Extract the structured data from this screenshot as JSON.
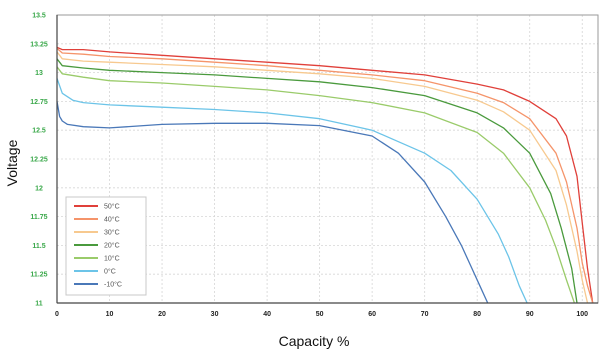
{
  "chart_data": {
    "type": "line",
    "title": "",
    "xlabel": "Capacity %",
    "ylabel": "Voltage",
    "xlim": [
      0,
      103
    ],
    "ylim": [
      11,
      13.5
    ],
    "x_ticks": [
      0,
      10,
      20,
      30,
      40,
      50,
      60,
      70,
      80,
      90,
      100
    ],
    "x_tick_labels": [
      "0",
      "10",
      "20",
      "30",
      "40",
      "50",
      "60",
      "70",
      "80",
      "90",
      "100"
    ],
    "y_ticks": [
      11,
      11.25,
      11.5,
      11.75,
      12,
      12.25,
      12.5,
      12.75,
      13,
      13.25,
      13.5
    ],
    "y_tick_labels": [
      "11",
      "11.25",
      "11.5",
      "11.75",
      "12",
      "12.25",
      "12.5",
      "12.75",
      "13",
      "13.25",
      "13.5"
    ],
    "x_tick_color": "#222222",
    "y_tick_color": "#3aa84a",
    "grid": true,
    "grid_style": "dashed",
    "legend_position": "bottom-left",
    "series": [
      {
        "name": "50°C",
        "color": "#e0403a",
        "x": [
          0,
          1,
          5,
          10,
          20,
          30,
          40,
          50,
          60,
          70,
          80,
          85,
          90,
          95,
          97,
          99,
          100,
          101,
          102
        ],
        "y": [
          13.22,
          13.2,
          13.2,
          13.18,
          13.15,
          13.12,
          13.09,
          13.06,
          13.02,
          12.98,
          12.9,
          12.85,
          12.75,
          12.6,
          12.45,
          12.1,
          11.7,
          11.3,
          11
        ]
      },
      {
        "name": "40°C",
        "color": "#f5946a",
        "x": [
          0,
          1,
          5,
          10,
          20,
          30,
          40,
          50,
          60,
          70,
          80,
          85,
          90,
          95,
          97,
          99,
          100,
          101,
          102
        ],
        "y": [
          13.21,
          13.17,
          13.16,
          13.14,
          13.12,
          13.09,
          13.06,
          13.02,
          12.98,
          12.93,
          12.82,
          12.74,
          12.6,
          12.3,
          12.05,
          11.65,
          11.35,
          11.15,
          11
        ]
      },
      {
        "name": "30°C",
        "color": "#f7c98f",
        "x": [
          0,
          1,
          5,
          10,
          20,
          30,
          40,
          50,
          60,
          70,
          80,
          85,
          90,
          95,
          97,
          99,
          100,
          101
        ],
        "y": [
          13.18,
          13.12,
          13.1,
          13.09,
          13.07,
          13.05,
          13.02,
          12.99,
          12.95,
          12.88,
          12.76,
          12.66,
          12.5,
          12.15,
          11.85,
          11.45,
          11.2,
          11
        ]
      },
      {
        "name": "20°C",
        "color": "#4a9a3d",
        "x": [
          0,
          1,
          5,
          10,
          20,
          30,
          40,
          50,
          60,
          70,
          80,
          85,
          90,
          94,
          96,
          98,
          99
        ],
        "y": [
          13.12,
          13.06,
          13.04,
          13.02,
          13,
          12.98,
          12.95,
          12.92,
          12.87,
          12.8,
          12.65,
          12.52,
          12.3,
          11.95,
          11.65,
          11.3,
          11
        ]
      },
      {
        "name": "10°C",
        "color": "#9acb6a",
        "x": [
          0,
          1,
          5,
          10,
          20,
          30,
          40,
          50,
          60,
          70,
          80,
          85,
          90,
          93,
          95,
          97,
          98.5
        ],
        "y": [
          13.05,
          12.99,
          12.96,
          12.93,
          12.91,
          12.88,
          12.85,
          12.8,
          12.74,
          12.65,
          12.48,
          12.3,
          12.0,
          11.72,
          11.48,
          11.2,
          11
        ]
      },
      {
        "name": "0°C",
        "color": "#6cc4e8",
        "x": [
          0,
          1,
          3,
          5,
          10,
          20,
          30,
          40,
          50,
          60,
          70,
          75,
          80,
          84,
          86,
          88,
          89.5
        ],
        "y": [
          12.95,
          12.82,
          12.76,
          12.74,
          12.72,
          12.7,
          12.68,
          12.65,
          12.6,
          12.5,
          12.3,
          12.15,
          11.9,
          11.6,
          11.4,
          11.15,
          11
        ]
      },
      {
        "name": "-10°C",
        "color": "#4a78b8",
        "x": [
          0,
          0.5,
          1,
          2,
          5,
          10,
          20,
          30,
          40,
          50,
          60,
          65,
          70,
          74,
          77,
          79,
          80.5,
          82
        ],
        "y": [
          12.75,
          12.62,
          12.58,
          12.55,
          12.53,
          12.52,
          12.55,
          12.56,
          12.56,
          12.54,
          12.45,
          12.3,
          12.05,
          11.75,
          11.5,
          11.3,
          11.15,
          11
        ]
      }
    ]
  }
}
